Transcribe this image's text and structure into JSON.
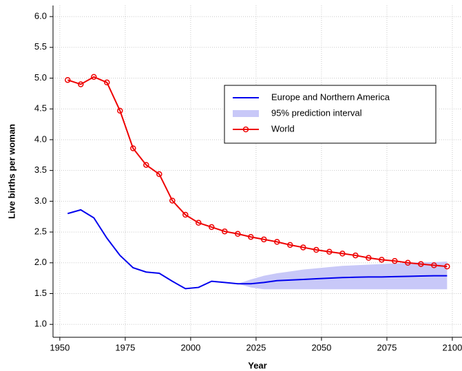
{
  "chart_data": {
    "type": "line",
    "x_label": "Year",
    "y_label": "Live births per woman",
    "xlim": [
      1947.4,
      2103.7
    ],
    "ylim": [
      0.79,
      6.18
    ],
    "xticks": [
      1950,
      1975,
      2000,
      2025,
      2050,
      2075,
      2100
    ],
    "yticks": [
      {
        "value": 1,
        "label": "1.0"
      },
      {
        "value": 1.5,
        "label": "1.5"
      },
      {
        "value": 2,
        "label": "2.0"
      },
      {
        "value": 2.5,
        "label": "2.5"
      },
      {
        "value": 3,
        "label": "3.0"
      },
      {
        "value": 3.5,
        "label": "3.5"
      },
      {
        "value": 4,
        "label": "4.0"
      },
      {
        "value": 4.5,
        "label": "4.5"
      },
      {
        "value": 5,
        "label": "5.0"
      },
      {
        "value": 5.5,
        "label": "5.5"
      },
      {
        "value": 6,
        "label": "6.0"
      }
    ],
    "grid": true,
    "legend": "upper right",
    "x": [
      1953,
      1958,
      1963,
      1968,
      1973,
      1978,
      1983,
      1988,
      1993,
      1998,
      2003,
      2008,
      2013,
      2018,
      2023,
      2028,
      2033,
      2038,
      2043,
      2048,
      2053,
      2058,
      2063,
      2068,
      2073,
      2078,
      2083,
      2088,
      2093,
      2098
    ],
    "series": [
      {
        "name": "Europe and Northern America",
        "color": "#0000ee",
        "marker": false,
        "values": [
          2.8,
          2.86,
          2.73,
          2.4,
          2.12,
          1.92,
          1.85,
          1.83,
          1.7,
          1.58,
          1.6,
          1.7,
          1.68,
          1.66,
          1.66,
          1.68,
          1.71,
          1.72,
          1.73,
          1.74,
          1.75,
          1.76,
          1.765,
          1.77,
          1.77,
          1.775,
          1.78,
          1.785,
          1.79,
          1.79
        ]
      },
      {
        "name": "World",
        "color": "#ee0000",
        "marker": true,
        "values": [
          4.97,
          4.9,
          5.02,
          4.93,
          4.47,
          3.86,
          3.59,
          3.44,
          3.01,
          2.78,
          2.65,
          2.58,
          2.51,
          2.47,
          2.42,
          2.38,
          2.34,
          2.29,
          2.25,
          2.21,
          2.18,
          2.15,
          2.12,
          2.08,
          2.05,
          2.03,
          2.0,
          1.98,
          1.96,
          1.94
        ]
      }
    ],
    "interval": {
      "name": "95% prediction interval",
      "color": "#c8c8f8",
      "x": [
        2018,
        2023,
        2028,
        2033,
        2038,
        2043,
        2048,
        2053,
        2058,
        2063,
        2068,
        2073,
        2078,
        2083,
        2088,
        2093,
        2098
      ],
      "lower": [
        1.66,
        1.6,
        1.57,
        1.57,
        1.57,
        1.57,
        1.57,
        1.57,
        1.57,
        1.57,
        1.57,
        1.57,
        1.57,
        1.57,
        1.57,
        1.57,
        1.57
      ],
      "upper": [
        1.66,
        1.73,
        1.79,
        1.83,
        1.86,
        1.89,
        1.91,
        1.93,
        1.95,
        1.96,
        1.97,
        1.98,
        1.99,
        2.0,
        2.01,
        2.01,
        2.02
      ]
    }
  }
}
